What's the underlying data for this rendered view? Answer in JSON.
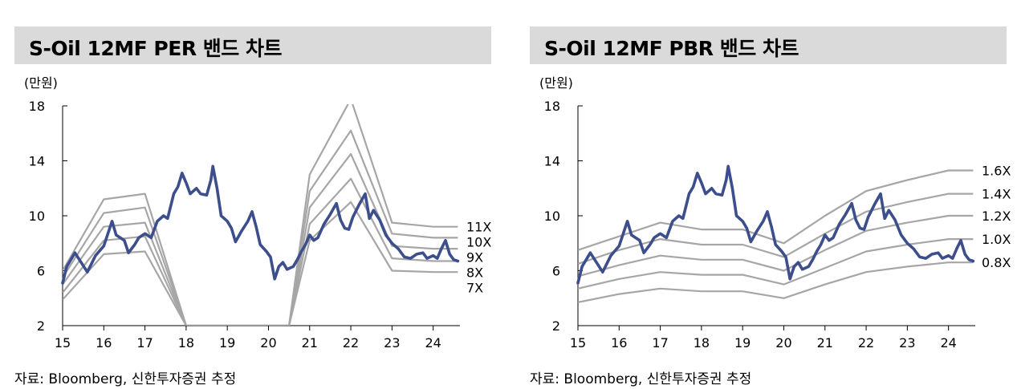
{
  "colors": {
    "band": "#a6a6a6",
    "price": "#3c4e8c",
    "title_bg": "#dadada"
  },
  "charts": [
    {
      "title": "S-Oil 12MF PER 밴드 차트",
      "unit": "(만원)",
      "source": "자료: Bloomberg, 신한투자증권 추정"
    },
    {
      "title": "S-Oil 12MF PBR 밴드 차트",
      "unit": "(만원)",
      "source": "자료: Bloomberg, 신한투자증권 추정"
    }
  ],
  "chart_data": [
    {
      "type": "line",
      "title": "S-Oil 12MF PER 밴드 차트",
      "ylabel": "(만원)",
      "xlabel": "",
      "ylim": [
        2,
        18
      ],
      "yticks": [
        2,
        6,
        10,
        14,
        18
      ],
      "xlim": [
        15,
        24.65
      ],
      "xticks": [
        15,
        16,
        17,
        18,
        19,
        20,
        21,
        22,
        23,
        24
      ],
      "x_tick_labels": [
        "15",
        "16",
        "17",
        "18",
        "19",
        "20",
        "21",
        "22",
        "23",
        "24"
      ],
      "bands": [
        {
          "name": "11X",
          "points": [
            [
              15,
              6.0
            ],
            [
              16,
              11.2
            ],
            [
              17,
              11.6
            ],
            [
              18,
              2.0
            ],
            [
              20.5,
              2.0
            ],
            [
              21,
              13.0
            ],
            [
              22,
              18.5
            ],
            [
              23,
              9.5
            ],
            [
              24,
              9.2
            ],
            [
              24.6,
              9.2
            ]
          ]
        },
        {
          "name": "10X",
          "points": [
            [
              15,
              5.5
            ],
            [
              16,
              10.2
            ],
            [
              17,
              10.6
            ],
            [
              18,
              2.0
            ],
            [
              20.5,
              2.0
            ],
            [
              21,
              11.8
            ],
            [
              22,
              16.2
            ],
            [
              23,
              8.7
            ],
            [
              24,
              8.4
            ],
            [
              24.6,
              8.4
            ]
          ]
        },
        {
          "name": "9X",
          "points": [
            [
              15,
              5.0
            ],
            [
              16,
              9.2
            ],
            [
              17,
              9.5
            ],
            [
              18,
              2.0
            ],
            [
              20.5,
              2.0
            ],
            [
              21,
              10.6
            ],
            [
              22,
              14.5
            ],
            [
              23,
              7.8
            ],
            [
              24,
              7.6
            ],
            [
              24.6,
              7.6
            ]
          ]
        },
        {
          "name": "8X",
          "points": [
            [
              15,
              4.4
            ],
            [
              16,
              8.2
            ],
            [
              17,
              8.5
            ],
            [
              18,
              2.0
            ],
            [
              20.5,
              2.0
            ],
            [
              21,
              9.4
            ],
            [
              22,
              12.7
            ],
            [
              23,
              6.9
            ],
            [
              24,
              6.7
            ],
            [
              24.6,
              6.7
            ]
          ]
        },
        {
          "name": "7X",
          "points": [
            [
              15,
              3.9
            ],
            [
              16,
              7.2
            ],
            [
              17,
              7.4
            ],
            [
              18,
              2.0
            ],
            [
              20.5,
              2.0
            ],
            [
              21,
              8.2
            ],
            [
              22,
              11.0
            ],
            [
              23,
              6.0
            ],
            [
              24,
              5.9
            ],
            [
              24.6,
              5.9
            ]
          ]
        }
      ],
      "price": {
        "name": "Price",
        "points": [
          [
            15,
            5.1
          ],
          [
            15.1,
            6.3
          ],
          [
            15.3,
            7.3
          ],
          [
            15.45,
            6.6
          ],
          [
            15.6,
            5.9
          ],
          [
            15.8,
            7.1
          ],
          [
            16.0,
            7.8
          ],
          [
            16.2,
            9.6
          ],
          [
            16.3,
            8.6
          ],
          [
            16.5,
            8.2
          ],
          [
            16.6,
            7.3
          ],
          [
            16.75,
            7.9
          ],
          [
            16.85,
            8.4
          ],
          [
            17.0,
            8.7
          ],
          [
            17.15,
            8.4
          ],
          [
            17.3,
            9.6
          ],
          [
            17.45,
            10.0
          ],
          [
            17.55,
            9.8
          ],
          [
            17.7,
            11.6
          ],
          [
            17.8,
            12.1
          ],
          [
            17.9,
            13.1
          ],
          [
            18.0,
            12.4
          ],
          [
            18.1,
            11.6
          ],
          [
            18.25,
            12.0
          ],
          [
            18.35,
            11.6
          ],
          [
            18.5,
            11.5
          ],
          [
            18.6,
            12.6
          ],
          [
            18.65,
            13.6
          ],
          [
            18.75,
            12.0
          ],
          [
            18.85,
            10.0
          ],
          [
            19.0,
            9.6
          ],
          [
            19.1,
            9.1
          ],
          [
            19.2,
            8.1
          ],
          [
            19.35,
            8.9
          ],
          [
            19.5,
            9.6
          ],
          [
            19.6,
            10.3
          ],
          [
            19.7,
            9.2
          ],
          [
            19.8,
            7.9
          ],
          [
            19.95,
            7.4
          ],
          [
            20.05,
            7.0
          ],
          [
            20.15,
            5.4
          ],
          [
            20.25,
            6.3
          ],
          [
            20.35,
            6.6
          ],
          [
            20.45,
            6.1
          ],
          [
            20.6,
            6.3
          ],
          [
            20.7,
            6.8
          ],
          [
            20.8,
            7.4
          ],
          [
            20.9,
            7.9
          ],
          [
            21.0,
            8.6
          ],
          [
            21.1,
            8.2
          ],
          [
            21.2,
            8.4
          ],
          [
            21.35,
            9.4
          ],
          [
            21.5,
            10.1
          ],
          [
            21.65,
            10.9
          ],
          [
            21.75,
            9.7
          ],
          [
            21.85,
            9.1
          ],
          [
            21.95,
            9.0
          ],
          [
            22.05,
            9.9
          ],
          [
            22.2,
            10.8
          ],
          [
            22.35,
            11.6
          ],
          [
            22.45,
            9.8
          ],
          [
            22.55,
            10.4
          ],
          [
            22.7,
            9.7
          ],
          [
            22.85,
            8.6
          ],
          [
            23.0,
            8.0
          ],
          [
            23.15,
            7.6
          ],
          [
            23.3,
            7.0
          ],
          [
            23.45,
            6.9
          ],
          [
            23.6,
            7.2
          ],
          [
            23.75,
            7.3
          ],
          [
            23.85,
            6.9
          ],
          [
            24.0,
            7.1
          ],
          [
            24.1,
            6.9
          ],
          [
            24.2,
            7.6
          ],
          [
            24.3,
            8.2
          ],
          [
            24.4,
            7.2
          ],
          [
            24.5,
            6.8
          ],
          [
            24.6,
            6.7
          ]
        ]
      }
    },
    {
      "type": "line",
      "title": "S-Oil 12MF PBR 밴드 차트",
      "ylabel": "(만원)",
      "xlabel": "",
      "ylim": [
        2,
        18
      ],
      "yticks": [
        2,
        6,
        10,
        14,
        18
      ],
      "xlim": [
        15,
        24.65
      ],
      "xticks": [
        15,
        16,
        17,
        18,
        19,
        20,
        21,
        22,
        23,
        24
      ],
      "x_tick_labels": [
        "15",
        "16",
        "17",
        "18",
        "19",
        "20",
        "21",
        "22",
        "23",
        "24"
      ],
      "bands": [
        {
          "name": "1.6X",
          "points": [
            [
              15,
              7.5
            ],
            [
              16,
              8.5
            ],
            [
              17,
              9.5
            ],
            [
              18,
              9.0
            ],
            [
              19,
              9.0
            ],
            [
              20,
              8.0
            ],
            [
              21,
              10.0
            ],
            [
              22,
              11.8
            ],
            [
              23,
              12.6
            ],
            [
              24,
              13.3
            ],
            [
              24.6,
              13.3
            ]
          ]
        },
        {
          "name": "1.4X",
          "points": [
            [
              15,
              6.5
            ],
            [
              16,
              7.5
            ],
            [
              17,
              8.3
            ],
            [
              18,
              7.9
            ],
            [
              19,
              7.9
            ],
            [
              20,
              7.0
            ],
            [
              21,
              8.7
            ],
            [
              22,
              10.3
            ],
            [
              23,
              11.0
            ],
            [
              24,
              11.6
            ],
            [
              24.6,
              11.6
            ]
          ]
        },
        {
          "name": "1.2X",
          "points": [
            [
              15,
              5.6
            ],
            [
              16,
              6.4
            ],
            [
              17,
              7.1
            ],
            [
              18,
              6.8
            ],
            [
              19,
              6.8
            ],
            [
              20,
              6.0
            ],
            [
              21,
              7.5
            ],
            [
              22,
              8.9
            ],
            [
              23,
              9.5
            ],
            [
              24,
              10.0
            ],
            [
              24.6,
              10.0
            ]
          ]
        },
        {
          "name": "1.0X",
          "points": [
            [
              15,
              4.7
            ],
            [
              16,
              5.4
            ],
            [
              17,
              5.9
            ],
            [
              18,
              5.7
            ],
            [
              19,
              5.7
            ],
            [
              20,
              5.0
            ],
            [
              21,
              6.2
            ],
            [
              22,
              7.4
            ],
            [
              23,
              7.9
            ],
            [
              24,
              8.3
            ],
            [
              24.6,
              8.3
            ]
          ]
        },
        {
          "name": "0.8X",
          "points": [
            [
              15,
              3.7
            ],
            [
              16,
              4.3
            ],
            [
              17,
              4.7
            ],
            [
              18,
              4.5
            ],
            [
              19,
              4.5
            ],
            [
              20,
              4.0
            ],
            [
              21,
              5.0
            ],
            [
              22,
              5.9
            ],
            [
              23,
              6.3
            ],
            [
              24,
              6.6
            ],
            [
              24.6,
              6.6
            ]
          ]
        }
      ],
      "price": {
        "name": "Price",
        "points": [
          [
            15,
            5.1
          ],
          [
            15.1,
            6.3
          ],
          [
            15.3,
            7.3
          ],
          [
            15.45,
            6.6
          ],
          [
            15.6,
            5.9
          ],
          [
            15.8,
            7.1
          ],
          [
            16.0,
            7.8
          ],
          [
            16.2,
            9.6
          ],
          [
            16.3,
            8.6
          ],
          [
            16.5,
            8.2
          ],
          [
            16.6,
            7.3
          ],
          [
            16.75,
            7.9
          ],
          [
            16.85,
            8.4
          ],
          [
            17.0,
            8.7
          ],
          [
            17.15,
            8.4
          ],
          [
            17.3,
            9.6
          ],
          [
            17.45,
            10.0
          ],
          [
            17.55,
            9.8
          ],
          [
            17.7,
            11.6
          ],
          [
            17.8,
            12.1
          ],
          [
            17.9,
            13.1
          ],
          [
            18.0,
            12.4
          ],
          [
            18.1,
            11.6
          ],
          [
            18.25,
            12.0
          ],
          [
            18.35,
            11.6
          ],
          [
            18.5,
            11.5
          ],
          [
            18.6,
            12.6
          ],
          [
            18.65,
            13.6
          ],
          [
            18.75,
            12.0
          ],
          [
            18.85,
            10.0
          ],
          [
            19.0,
            9.6
          ],
          [
            19.1,
            9.1
          ],
          [
            19.2,
            8.1
          ],
          [
            19.35,
            8.9
          ],
          [
            19.5,
            9.6
          ],
          [
            19.6,
            10.3
          ],
          [
            19.7,
            9.2
          ],
          [
            19.8,
            7.9
          ],
          [
            19.95,
            7.4
          ],
          [
            20.05,
            7.0
          ],
          [
            20.15,
            5.4
          ],
          [
            20.25,
            6.3
          ],
          [
            20.35,
            6.6
          ],
          [
            20.45,
            6.1
          ],
          [
            20.6,
            6.3
          ],
          [
            20.7,
            6.8
          ],
          [
            20.8,
            7.4
          ],
          [
            20.9,
            7.9
          ],
          [
            21.0,
            8.6
          ],
          [
            21.1,
            8.2
          ],
          [
            21.2,
            8.4
          ],
          [
            21.35,
            9.4
          ],
          [
            21.5,
            10.1
          ],
          [
            21.65,
            10.9
          ],
          [
            21.75,
            9.7
          ],
          [
            21.85,
            9.1
          ],
          [
            21.95,
            9.0
          ],
          [
            22.05,
            9.9
          ],
          [
            22.2,
            10.8
          ],
          [
            22.35,
            11.6
          ],
          [
            22.45,
            9.8
          ],
          [
            22.55,
            10.4
          ],
          [
            22.7,
            9.7
          ],
          [
            22.85,
            8.6
          ],
          [
            23.0,
            8.0
          ],
          [
            23.15,
            7.6
          ],
          [
            23.3,
            7.0
          ],
          [
            23.45,
            6.9
          ],
          [
            23.6,
            7.2
          ],
          [
            23.75,
            7.3
          ],
          [
            23.85,
            6.9
          ],
          [
            24.0,
            7.1
          ],
          [
            24.1,
            6.9
          ],
          [
            24.2,
            7.6
          ],
          [
            24.3,
            8.2
          ],
          [
            24.4,
            7.2
          ],
          [
            24.5,
            6.8
          ],
          [
            24.6,
            6.7
          ]
        ]
      }
    }
  ]
}
